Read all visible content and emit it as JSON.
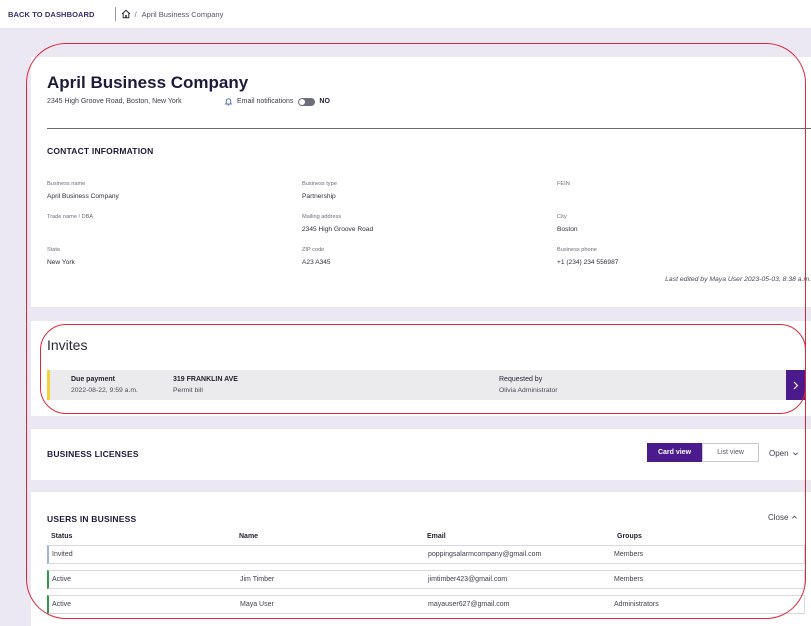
{
  "topbar": {
    "back_label": "BACK TO DASHBOARD",
    "breadcrumb_separator": "/",
    "breadcrumb_current": "April Business Company",
    "home_icon": "home-icon"
  },
  "company": {
    "name": "April Business Company",
    "address": "2345 High Groove Road, Boston, New York",
    "notifications_label": "Email notifications",
    "notifications_state": "NO",
    "notifications_on": false
  },
  "contact": {
    "title": "CONTACT INFORMATION",
    "fields": {
      "business_name": {
        "label": "Business name",
        "value": "April Business Company"
      },
      "business_type": {
        "label": "Business type",
        "value": "Partnership"
      },
      "fein": {
        "label": "FEIN",
        "value": ""
      },
      "trade_name": {
        "label": "Trade name / DBA",
        "value": ""
      },
      "mailing_address": {
        "label": "Mailing address",
        "value": "2345 High Groove Road"
      },
      "city": {
        "label": "City",
        "value": "Boston"
      },
      "state": {
        "label": "State",
        "value": "New York"
      },
      "zip": {
        "label": "ZIP code",
        "value": "A23 A345"
      },
      "phone": {
        "label": "Business phone",
        "value": "+1 (234) 234 556987"
      }
    },
    "last_edited": "Last edited by Maya User 2023-05-03, 8:38 a.m."
  },
  "invites": {
    "title": "Invites",
    "accent_color": "#f2d23a",
    "row": {
      "type": "Due payment",
      "date": "2022-08-22, 9:59 a.m.",
      "address": "319 FRANKLIN AVE",
      "item": "Permit bill",
      "requested_label": "Requested by",
      "requested_by": "Olivia Administrator"
    }
  },
  "licenses": {
    "title": "BUSINESS LICENSES",
    "card_view": "Card view",
    "list_view": "List view",
    "open_label": "Open"
  },
  "users": {
    "title": "USERS IN BUSINESS",
    "close_label": "Close",
    "headers": {
      "status": "Status",
      "name": "Name",
      "email": "Email",
      "groups": "Groups"
    },
    "rows": [
      {
        "status": "Invited",
        "name": "",
        "email": "poppingsalarmcompany@gmail.com",
        "groups": "Members"
      },
      {
        "status": "Active",
        "name": "Jim Timber",
        "email": "jimtimber423@gmail.com",
        "groups": "Members"
      },
      {
        "status": "Active",
        "name": "Maya User",
        "email": "mayauser627@gmail.com",
        "groups": "Administrators"
      }
    ]
  },
  "colors": {
    "primary": "#4b1a8c",
    "background": "#ece8f3",
    "annotation": "#e0283a",
    "active_status": "#2e9a4a"
  }
}
